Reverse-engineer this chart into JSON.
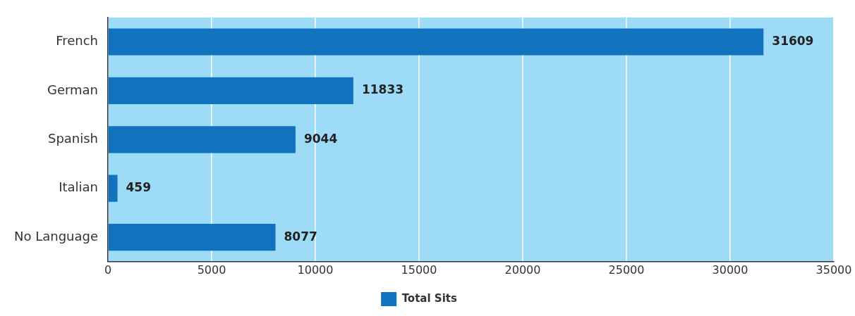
{
  "chart_data": {
    "type": "bar",
    "orientation": "horizontal",
    "categories": [
      "French",
      "German",
      "Spanish",
      "Italian",
      "No Language"
    ],
    "series": [
      {
        "name": "Total Sits",
        "color": "#1173bd",
        "values": [
          31609,
          11833,
          9044,
          459,
          8077
        ]
      }
    ],
    "xlim": [
      0,
      35000
    ],
    "xticks": [
      0,
      5000,
      10000,
      15000,
      20000,
      25000,
      30000,
      35000
    ],
    "grid": "x",
    "legend": "bottom",
    "data_labels": true
  }
}
